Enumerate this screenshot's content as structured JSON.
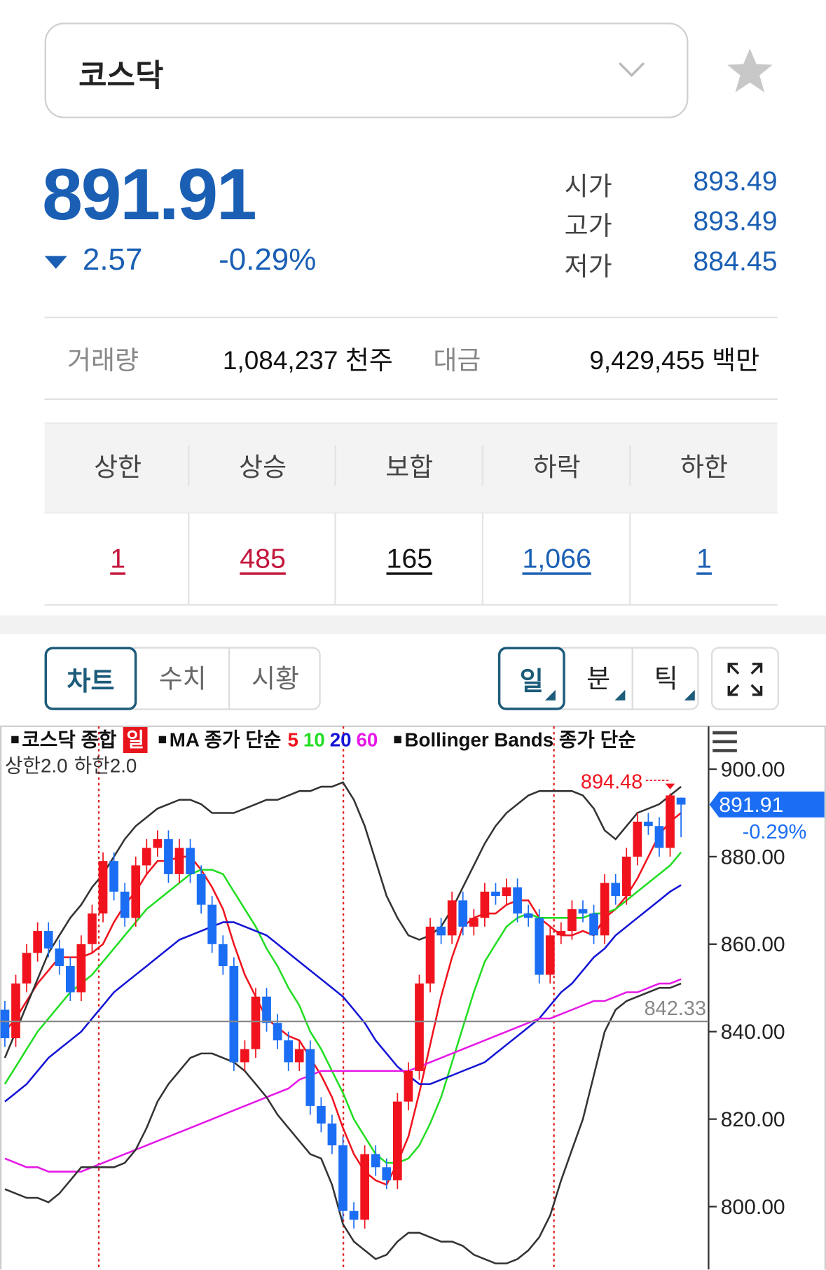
{
  "header": {
    "market": "코스닥"
  },
  "quote": {
    "price": "891.91",
    "change": "2.57",
    "change_pct": "-0.29%",
    "rows": [
      {
        "label": "시가",
        "value": "893.49"
      },
      {
        "label": "고가",
        "value": "893.49"
      },
      {
        "label": "저가",
        "value": "884.45"
      }
    ]
  },
  "volume": {
    "label": "거래량",
    "value": "1,084,237 천주",
    "amount_label": "대금",
    "amount": "9,429,455 백만"
  },
  "breadth": {
    "headers": [
      "상한",
      "상승",
      "보합",
      "하락",
      "하한"
    ],
    "values": [
      "1",
      "485",
      "165",
      "1,066",
      "1"
    ]
  },
  "tabs": [
    "차트",
    "수치",
    "시황"
  ],
  "periods": [
    "일",
    "분",
    "틱"
  ],
  "chart_data": {
    "type": "candlestick",
    "legend": {
      "price": "코스닥 종합",
      "ma": "MA 종가 단순",
      "bb": "Bollinger Bands 종가 단순"
    },
    "up_color": "#f0131e",
    "down_color": "#1b6ef3",
    "open": [
      845,
      838.5,
      851,
      858,
      863,
      859,
      855,
      849,
      860,
      867,
      879,
      872,
      866,
      878,
      882,
      884,
      876,
      882,
      876,
      869,
      860,
      855,
      833,
      836,
      848,
      842,
      838,
      833,
      836,
      823,
      819,
      814,
      799,
      797,
      812,
      809,
      806,
      824,
      831,
      851,
      864,
      862,
      870,
      864,
      866,
      872,
      871,
      873,
      867,
      866,
      853,
      862,
      863,
      868,
      867,
      862,
      874,
      871,
      880,
      888,
      887,
      882,
      893.49
    ],
    "high": [
      847,
      853,
      860,
      865,
      865,
      861,
      857,
      862,
      869,
      881,
      881,
      874,
      880,
      884,
      886,
      886,
      884,
      884,
      878,
      871,
      862,
      857,
      838,
      850,
      850,
      844,
      840,
      838,
      838,
      825,
      821,
      816,
      801,
      814,
      814,
      811,
      826,
      833,
      853,
      866,
      866,
      872,
      872,
      868,
      874,
      874,
      875,
      875,
      869,
      868,
      864,
      865,
      870,
      870,
      869,
      876,
      876,
      882,
      890,
      890,
      889,
      894.48,
      893.49
    ],
    "low": [
      836.5,
      836.5,
      849,
      856,
      857,
      853,
      847,
      847,
      858,
      865,
      870,
      864,
      864,
      876,
      880,
      874,
      874,
      874,
      867,
      858,
      853,
      831,
      831,
      834,
      840,
      836,
      831,
      831,
      821,
      817,
      812,
      797,
      795,
      795,
      807,
      804,
      804,
      822,
      829,
      849,
      860,
      860,
      862,
      862,
      864,
      869,
      869,
      865,
      864,
      851,
      851,
      860,
      861,
      865,
      860,
      860,
      869,
      869,
      878,
      885,
      880,
      880,
      884.45
    ],
    "close": [
      838.5,
      851,
      858,
      863,
      859,
      855,
      849,
      860,
      867,
      879,
      872,
      866,
      878,
      882,
      884,
      876,
      882,
      876,
      869,
      860,
      855,
      833,
      836,
      848,
      842,
      838,
      833,
      836,
      823,
      819,
      814,
      799,
      797,
      812,
      809,
      806,
      824,
      831,
      851,
      864,
      862,
      870,
      864,
      866,
      872,
      871,
      873,
      867,
      866,
      853,
      862,
      863,
      868,
      867,
      862,
      874,
      871,
      880,
      888,
      887,
      882,
      894,
      891.91
    ],
    "series": [
      {
        "name": "5",
        "color": "#f0131e",
        "values": [
          840,
          843,
          847,
          851,
          854,
          857,
          857,
          857,
          858,
          860,
          865,
          869,
          872,
          876,
          879,
          879,
          880,
          880,
          877,
          873,
          868,
          860,
          853,
          848,
          843,
          841,
          839,
          838,
          834,
          830,
          825,
          818,
          812,
          808,
          806,
          805,
          810,
          816,
          826,
          837,
          848,
          857,
          864,
          866,
          867,
          867,
          869,
          870,
          870,
          866,
          864,
          862,
          862,
          863,
          862,
          866,
          868,
          871,
          875,
          880,
          885,
          888,
          890
        ]
      },
      {
        "name": "10",
        "color": "#22dd22",
        "values": [
          828,
          832,
          836,
          840,
          843,
          846,
          849,
          851,
          853,
          856,
          859,
          862,
          865,
          868,
          870,
          872,
          874,
          876,
          877,
          877,
          876,
          872,
          868,
          864,
          859,
          855,
          850,
          846,
          840,
          836,
          831,
          826,
          820,
          816,
          812,
          810,
          810,
          811,
          814,
          819,
          825,
          833,
          841,
          849,
          856,
          860,
          864,
          866,
          867,
          866,
          866,
          866,
          866,
          866,
          867,
          867,
          868,
          870,
          872,
          874,
          876,
          878,
          881
        ]
      },
      {
        "name": "20",
        "color": "#1515d6",
        "values": [
          824,
          826,
          828,
          831,
          834,
          836,
          838,
          840,
          843,
          846,
          849,
          851,
          853,
          855,
          857,
          859,
          861,
          862,
          863,
          864,
          865,
          865,
          864,
          863,
          862,
          860,
          858,
          856,
          854,
          852,
          850,
          848,
          845,
          842,
          838,
          835,
          832,
          830,
          828,
          828,
          829,
          830,
          831,
          832,
          833,
          835,
          837,
          839,
          841,
          843,
          846,
          849,
          851,
          854,
          857,
          859,
          862,
          864,
          866,
          868,
          870,
          872,
          873.5
        ]
      },
      {
        "name": "60",
        "color": "#e619e6",
        "values": [
          811,
          810,
          809,
          809,
          808,
          808,
          808,
          808,
          809,
          810,
          811,
          812,
          813,
          814,
          815,
          816,
          817,
          818,
          819,
          820,
          821,
          822,
          823,
          824,
          825,
          826,
          827,
          829,
          830,
          831,
          831,
          831,
          831,
          831,
          831,
          831,
          831,
          831,
          832,
          833,
          834,
          835,
          836,
          837,
          838,
          839,
          840,
          841,
          842,
          843,
          843,
          844,
          845,
          846,
          847,
          847,
          848,
          849,
          849,
          850,
          851,
          851,
          852
        ]
      },
      {
        "name": "상한2.0",
        "color": "#333333",
        "values": [
          834,
          840,
          846,
          852,
          858,
          862,
          866,
          869,
          873,
          876,
          880,
          884,
          887,
          889,
          891,
          892,
          893,
          893,
          892,
          890,
          890,
          890,
          891,
          892,
          893,
          893,
          894,
          895,
          895,
          896,
          896,
          897,
          893,
          887,
          879,
          871,
          866,
          862,
          861,
          862,
          864,
          868,
          873,
          878,
          883,
          887,
          890,
          892,
          894,
          895,
          895,
          895,
          895,
          894,
          891,
          886,
          884,
          887,
          890,
          891,
          892,
          894,
          896
        ]
      },
      {
        "name": "하한2.0",
        "color": "#333333",
        "values": [
          804,
          803,
          802,
          802,
          801,
          803,
          806,
          809,
          809,
          809,
          809,
          810,
          813,
          818,
          824,
          828,
          831,
          834,
          835,
          835,
          834,
          833,
          831,
          828,
          825,
          821,
          818,
          815,
          812,
          811,
          805,
          796,
          792,
          790,
          788,
          789,
          792,
          794,
          794,
          793,
          792,
          792,
          791,
          789,
          788,
          787,
          787,
          788,
          790,
          793,
          798,
          806,
          813,
          820,
          830,
          840,
          845,
          847,
          848,
          849,
          850,
          850,
          851
        ]
      }
    ],
    "reference_line": 842.33,
    "ylim": [
      785.6,
      909.8
    ],
    "yticks": [
      {
        "value": 900,
        "label": "900.00"
      },
      {
        "value": 880,
        "label": "880.00"
      },
      {
        "value": 860,
        "label": "860.00"
      },
      {
        "value": 840,
        "label": "840.00"
      },
      {
        "value": 820,
        "label": "820.00"
      },
      {
        "value": 800,
        "label": "800.00"
      }
    ],
    "grid": false
  }
}
